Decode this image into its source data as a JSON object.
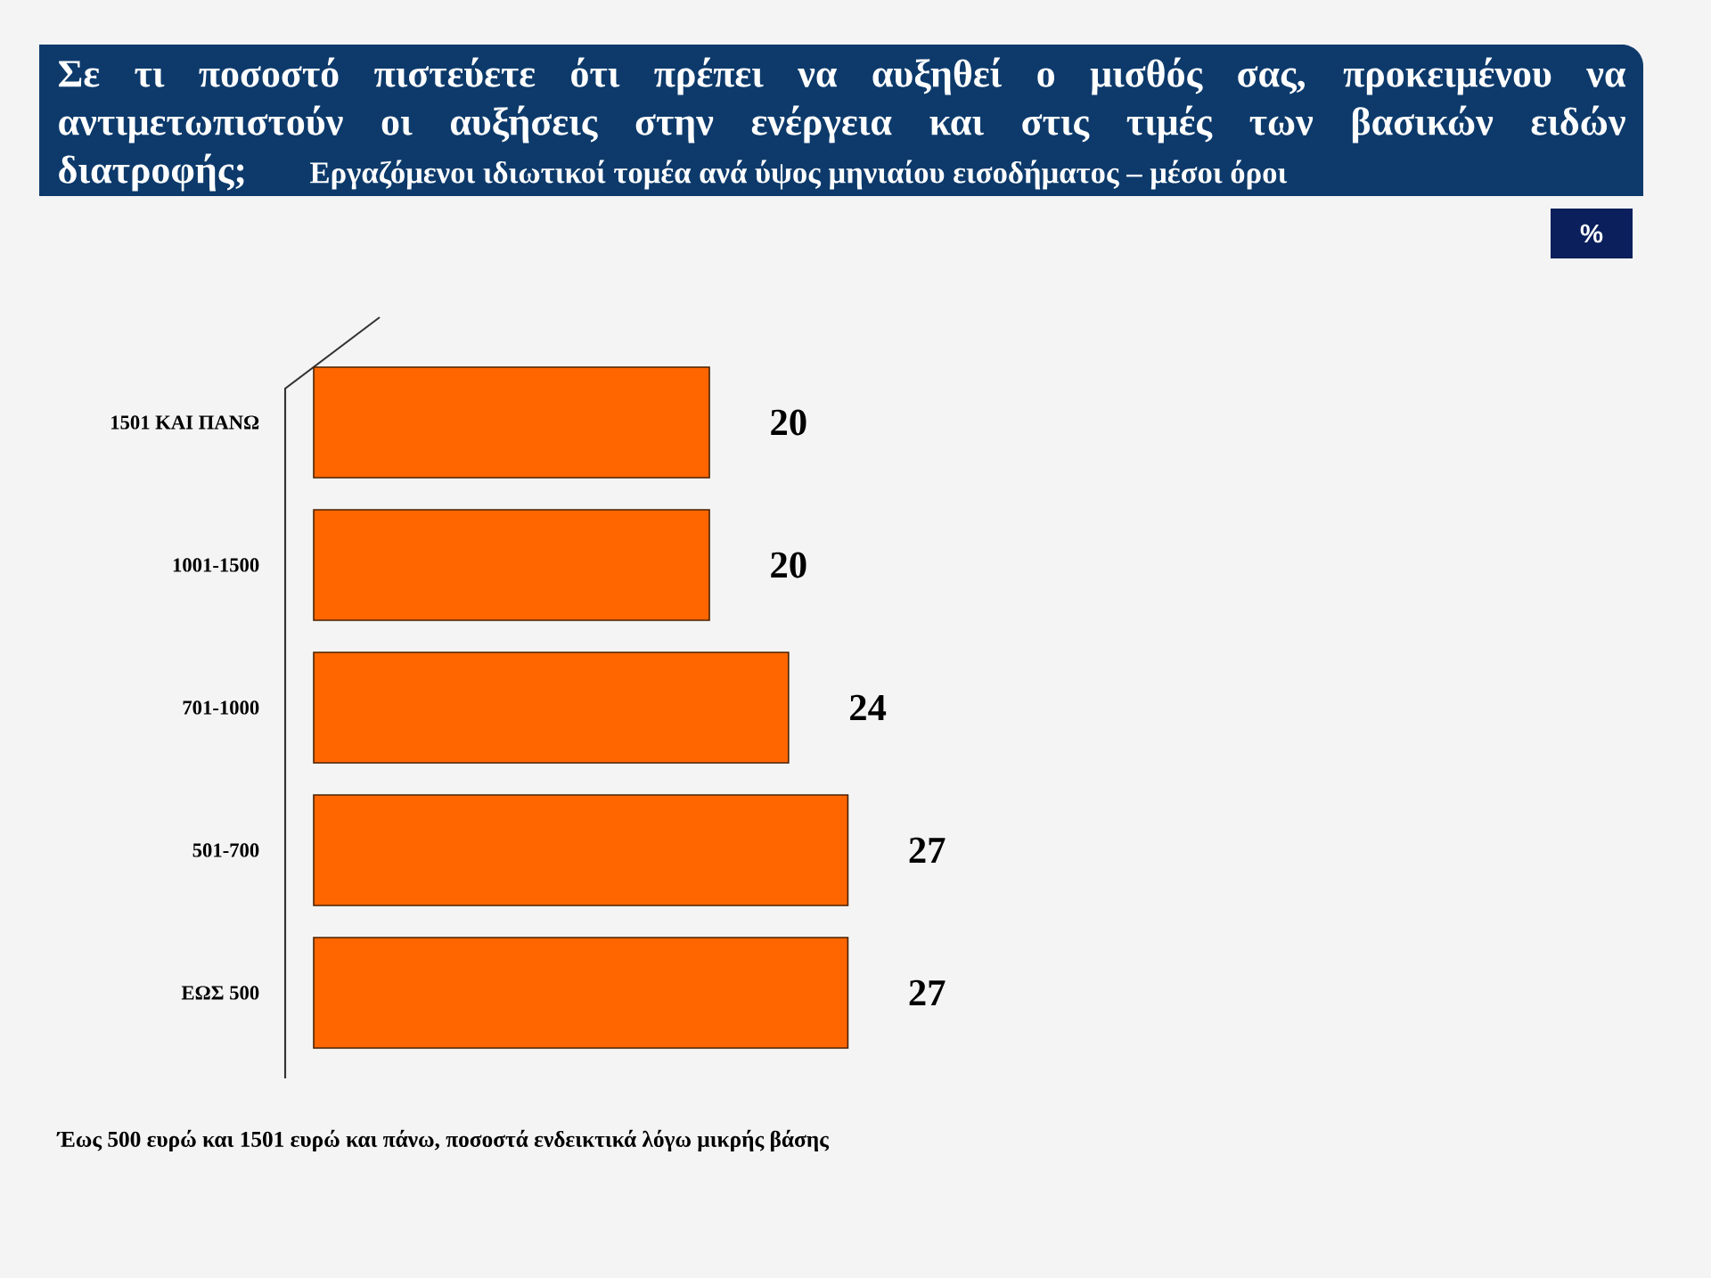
{
  "chart_data": {
    "type": "bar",
    "orientation": "horizontal",
    "title": "Σε τι ποσοστό πιστεύετε ότι πρέπει να αυξηθεί ο μισθός σας, προκειμένου να αντιμετωπιστούν οι αυξήσεις στην ενέργεια και στις τιμές των βασικών ειδών διατροφής;",
    "subtitle": "Εργαζόμενοι ιδιωτικοί τομέα ανά ύψος μηνιαίου εισοδήματος – μέσοι όροι",
    "categories": [
      "1501 ΚΑΙ ΠΑΝΩ",
      "1001-1500",
      "701-1000",
      "501-700",
      "ΕΩΣ 500"
    ],
    "values": [
      20,
      20,
      24,
      27,
      27
    ],
    "color": "#ff6600",
    "data_labels": true,
    "annotations": [
      "%",
      "Έως 500 ευρώ και 1501 ευρώ και πάνω, ποσοστά ενδεικτικά λόγω μικρής βάσης"
    ]
  }
}
